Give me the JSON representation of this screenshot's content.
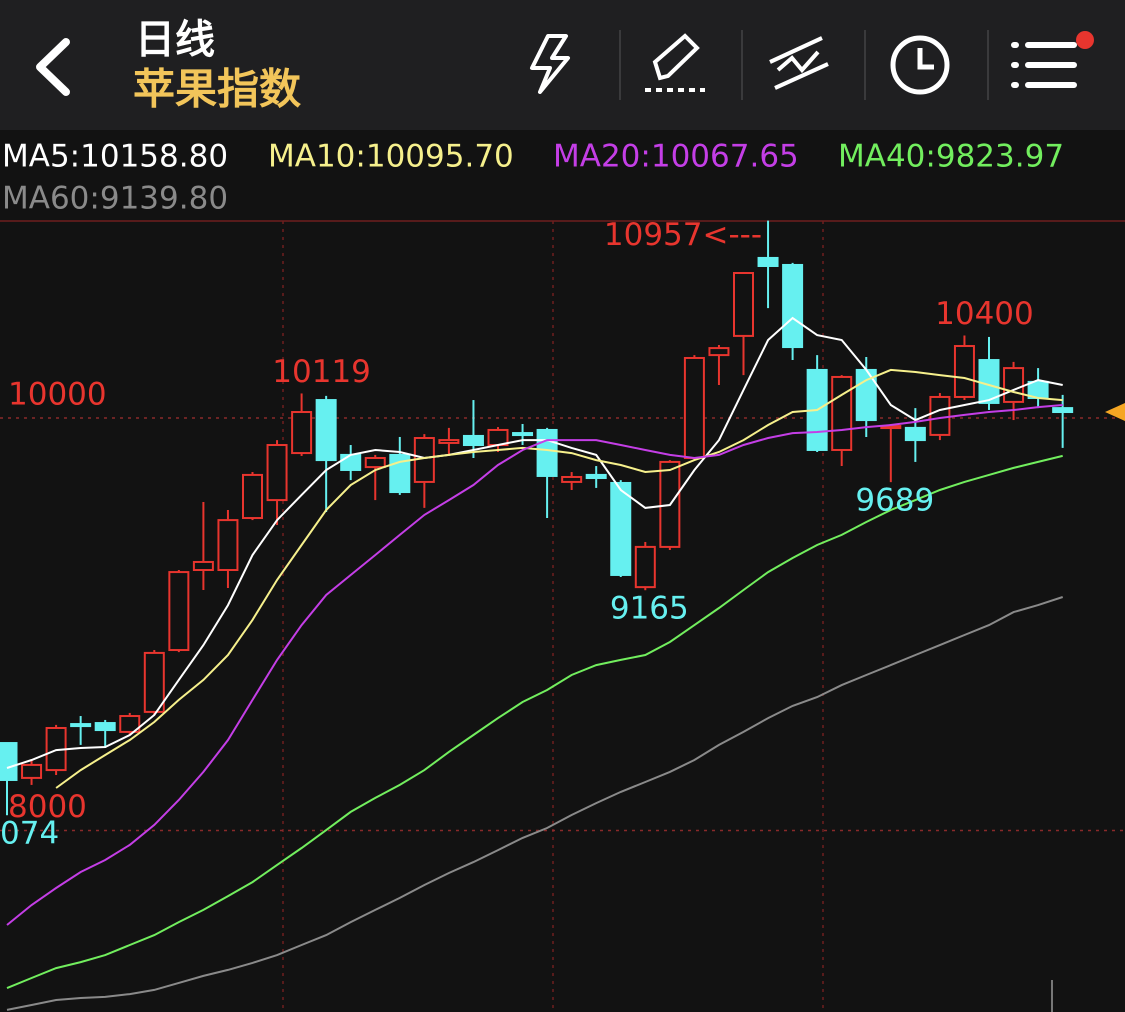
{
  "header": {
    "title": "日线",
    "subtitle": "苹果指数"
  },
  "chart_data": {
    "type": "candlestick",
    "ylim": [
      7120,
      10960
    ],
    "yticks": [
      8000,
      10000
    ],
    "grid": true,
    "up_color": "#e8352e",
    "down_color": "#66f0f0",
    "open": [
      8424,
      8255,
      8293,
      8516,
      8521,
      8478,
      8575,
      8875,
      9263,
      9263,
      9515,
      9602,
      9830,
      10087,
      9821,
      9762,
      9821,
      9690,
      9879,
      9913,
      9869,
      9927,
      9942,
      9690,
      9724,
      9685,
      9180,
      9375,
      9806,
      10305,
      10398,
      10776,
      10742,
      10233,
      9845,
      10233,
      9952,
      9952,
      9918,
      10102,
      10281,
      10078,
      10175,
      10048
    ],
    "high": [
      8424,
      8342,
      8512,
      8555,
      8536,
      8570,
      8875,
      9263,
      9593,
      9554,
      9738,
      9893,
      10119,
      10107,
      9869,
      9821,
      9908,
      9922,
      9952,
      10087,
      9956,
      9971,
      9952,
      9738,
      9767,
      9699,
      9399,
      9796,
      10305,
      10354,
      10708,
      10957,
      10752,
      10305,
      10208,
      10296,
      9971,
      10048,
      10121,
      10400,
      10393,
      10272,
      10242,
      10112
    ],
    "low": [
      8074,
      8221,
      8269,
      8415,
      8400,
      8463,
      8560,
      8865,
      9166,
      9176,
      9505,
      9481,
      9816,
      9544,
      9699,
      9602,
      9627,
      9564,
      9821,
      9806,
      9835,
      9869,
      9515,
      9651,
      9661,
      9229,
      9165,
      9360,
      9796,
      10160,
      10208,
      10533,
      10281,
      9835,
      9767,
      9908,
      9689,
      9787,
      9893,
      10087,
      10039,
      9990,
      10048,
      9855
    ],
    "close": [
      8245,
      8318,
      8497,
      8507,
      8487,
      8555,
      8861,
      9253,
      9302,
      9505,
      9724,
      9869,
      10029,
      9796,
      9748,
      9806,
      9641,
      9903,
      9893,
      9869,
      9942,
      9922,
      9719,
      9714,
      9709,
      9239,
      9375,
      9787,
      10291,
      10339,
      10703,
      10737,
      10344,
      9845,
      10199,
      9990,
      9961,
      9893,
      10102,
      10349,
      10073,
      10242,
      10097,
      10029
    ],
    "high_labels": [
      null,
      null,
      null,
      null,
      null,
      null,
      null,
      null,
      null,
      null,
      null,
      null,
      "10119",
      null,
      null,
      null,
      null,
      null,
      null,
      null,
      null,
      null,
      null,
      null,
      null,
      null,
      null,
      null,
      null,
      null,
      null,
      "10957<---",
      null,
      null,
      null,
      null,
      null,
      null,
      null,
      "10400",
      null,
      null,
      null,
      null
    ],
    "low_labels": [
      "074",
      null,
      null,
      null,
      null,
      null,
      null,
      null,
      null,
      null,
      null,
      null,
      null,
      null,
      null,
      null,
      null,
      null,
      null,
      null,
      null,
      null,
      null,
      null,
      null,
      null,
      "9165",
      null,
      null,
      null,
      null,
      null,
      null,
      null,
      null,
      null,
      "9689",
      null,
      null,
      null,
      null,
      null,
      null,
      null
    ],
    "series": [
      {
        "name": "MA5:10158.80",
        "color": "#ffffff",
        "values": [
          8303,
          8342,
          8390,
          8400,
          8405,
          8463,
          8560,
          8730,
          8899,
          9093,
          9336,
          9505,
          9627,
          9748,
          9821,
          9845,
          9835,
          9806,
          9821,
          9845,
          9869,
          9893,
          9893,
          9855,
          9821,
          9651,
          9564,
          9578,
          9748,
          9893,
          10136,
          10378,
          10485,
          10402,
          10378,
          10233,
          10063,
          9990,
          10039,
          10063,
          10087,
          10136,
          10184,
          10160
        ]
      },
      {
        "name": "MA10:10095.70",
        "color": "#f6f08c",
        "values": [
          null,
          null,
          8206,
          8293,
          8366,
          8439,
          8526,
          8633,
          8730,
          8851,
          9021,
          9215,
          9384,
          9554,
          9675,
          9748,
          9787,
          9806,
          9821,
          9835,
          9845,
          9855,
          9845,
          9830,
          9796,
          9772,
          9738,
          9748,
          9796,
          9835,
          9893,
          9966,
          10029,
          10039,
          10112,
          10184,
          10233,
          10223,
          10208,
          10194,
          10160,
          10126,
          10097,
          10087
        ]
      },
      {
        "name": "MA20:10067.65",
        "color": "#c43ee6",
        "values": [
          7542,
          7639,
          7721,
          7799,
          7857,
          7930,
          8027,
          8148,
          8284,
          8439,
          8633,
          8827,
          8996,
          9142,
          9239,
          9336,
          9433,
          9530,
          9602,
          9675,
          9772,
          9845,
          9893,
          9893,
          9893,
          9869,
          9845,
          9821,
          9806,
          9821,
          9869,
          9903,
          9927,
          9932,
          9942,
          9956,
          9966,
          9981,
          10000,
          10015,
          10029,
          10039,
          10053,
          10063
        ]
      },
      {
        "name": "MA40:9823.97",
        "color": "#72ee5e",
        "values": [
          7236,
          7285,
          7333,
          7362,
          7396,
          7445,
          7493,
          7556,
          7615,
          7682,
          7750,
          7833,
          7915,
          8002,
          8090,
          8158,
          8221,
          8293,
          8381,
          8463,
          8545,
          8623,
          8681,
          8754,
          8802,
          8827,
          8851,
          8914,
          8996,
          9079,
          9166,
          9253,
          9321,
          9384,
          9433,
          9496,
          9554,
          9602,
          9651,
          9690,
          9724,
          9758,
          9787,
          9816
        ]
      },
      {
        "name": "MA60:9139.80",
        "color": "#8a8a8a",
        "values": [
          7130,
          7154,
          7178,
          7188,
          7193,
          7207,
          7227,
          7261,
          7295,
          7324,
          7358,
          7396,
          7445,
          7493,
          7556,
          7615,
          7673,
          7736,
          7794,
          7847,
          7905,
          7964,
          8012,
          8075,
          8133,
          8187,
          8235,
          8284,
          8342,
          8415,
          8478,
          8545,
          8604,
          8647,
          8705,
          8754,
          8802,
          8851,
          8899,
          8948,
          8996,
          9059,
          9093,
          9132
        ]
      }
    ]
  }
}
